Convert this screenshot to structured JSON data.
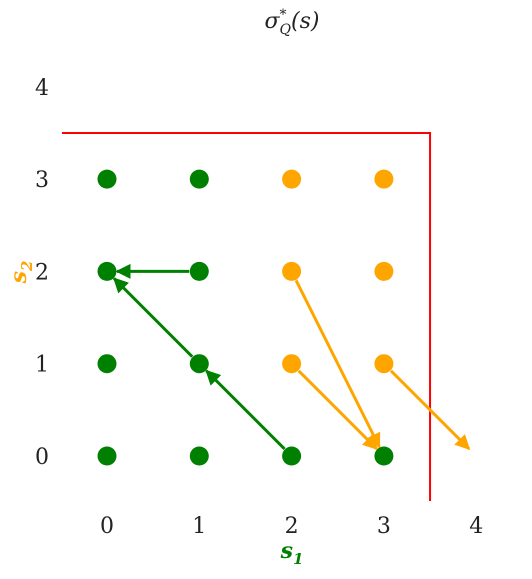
{
  "title": "σ*Q(s)",
  "title_parts": {
    "base": "σ",
    "sup": "*",
    "sub": "Q",
    "arg": "(s)"
  },
  "xlabel": {
    "base": "s",
    "sub": "1",
    "color": "#008000"
  },
  "ylabel": {
    "base": "s",
    "sub": "2",
    "color": "#FFA500"
  },
  "x_ticks": [
    "0",
    "1",
    "2",
    "3",
    "4"
  ],
  "y_ticks": [
    "0",
    "1",
    "2",
    "3",
    "4"
  ],
  "colors": {
    "green": "#008000",
    "orange": "#FFA500",
    "boundary": "#FF0000"
  },
  "chart_data": {
    "type": "scatter",
    "xlim": [
      -0.7,
      4.3
    ],
    "ylim": [
      -0.6,
      4.3
    ],
    "boundary": {
      "x": 3.5,
      "y": 3.5
    },
    "points": [
      {
        "x": 0,
        "y": 3,
        "color": "green"
      },
      {
        "x": 1,
        "y": 3,
        "color": "green"
      },
      {
        "x": 2,
        "y": 3,
        "color": "orange"
      },
      {
        "x": 3,
        "y": 3,
        "color": "orange"
      },
      {
        "x": 0,
        "y": 2,
        "color": "green"
      },
      {
        "x": 1,
        "y": 2,
        "color": "green"
      },
      {
        "x": 2,
        "y": 2,
        "color": "orange"
      },
      {
        "x": 3,
        "y": 2,
        "color": "orange"
      },
      {
        "x": 0,
        "y": 1,
        "color": "green"
      },
      {
        "x": 1,
        "y": 1,
        "color": "green"
      },
      {
        "x": 2,
        "y": 1,
        "color": "orange"
      },
      {
        "x": 3,
        "y": 1,
        "color": "orange"
      },
      {
        "x": 0,
        "y": 0,
        "color": "green"
      },
      {
        "x": 1,
        "y": 0,
        "color": "green"
      },
      {
        "x": 2,
        "y": 0,
        "color": "green"
      },
      {
        "x": 3,
        "y": 0,
        "color": "green"
      }
    ],
    "arrows": [
      {
        "from": [
          1,
          2
        ],
        "to": [
          0,
          2
        ],
        "color": "green"
      },
      {
        "from": [
          1,
          1
        ],
        "to": [
          0,
          2
        ],
        "color": "green"
      },
      {
        "from": [
          2,
          0
        ],
        "to": [
          1,
          1
        ],
        "color": "green"
      },
      {
        "from": [
          2,
          2
        ],
        "to": [
          3,
          0
        ],
        "color": "orange"
      },
      {
        "from": [
          2,
          1
        ],
        "to": [
          3,
          0
        ],
        "color": "orange"
      },
      {
        "from": [
          3,
          1
        ],
        "to": [
          4,
          0
        ],
        "color": "orange"
      }
    ]
  }
}
